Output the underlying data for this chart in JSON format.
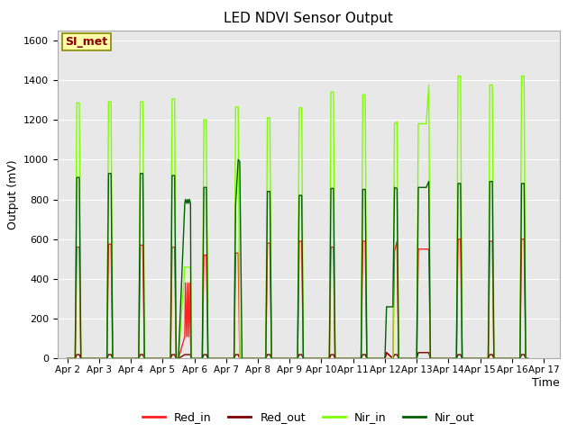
{
  "title": "LED NDVI Sensor Output",
  "xlabel": "Time",
  "ylabel": "Output (mV)",
  "ylim": [
    0,
    1650
  ],
  "yticks": [
    0,
    200,
    400,
    600,
    800,
    1000,
    1200,
    1400,
    1600
  ],
  "annotation_text": "SI_met",
  "bg_color": "#e8e8e8",
  "colors": {
    "Red_in": "#ff2020",
    "Red_out": "#800000",
    "Nir_in": "#80ff00",
    "Nir_out": "#006000"
  },
  "days": [
    "Apr 2",
    "Apr 3",
    "Apr 4",
    "Apr 5",
    "Apr 6",
    "Apr 7",
    "Apr 8",
    "Apr 9",
    "Apr 10",
    "Apr 11",
    "Apr 12",
    "Apr 13",
    "Apr 14",
    "Apr 15",
    "Apr 16",
    "Apr 17"
  ],
  "day_positions": [
    0,
    1,
    2,
    3,
    4,
    5,
    6,
    7,
    8,
    9,
    10,
    11,
    12,
    13,
    14,
    15
  ],
  "xlim": [
    -0.3,
    15.5
  ],
  "series": {
    "Red_in": {
      "x": [
        0,
        0.25,
        0.3,
        0.38,
        0.43,
        0.5,
        1,
        1.25,
        1.3,
        1.38,
        1.43,
        1.5,
        2,
        2.25,
        2.3,
        2.38,
        2.43,
        2.5,
        3,
        3.25,
        3.3,
        3.38,
        3.43,
        3.5,
        3.7,
        3.72,
        3.76,
        3.79,
        3.82,
        3.85,
        3.88,
        3.9,
        4,
        4.25,
        4.3,
        4.38,
        4.43,
        4.5,
        5,
        5.25,
        5.3,
        5.38,
        5.43,
        5.5,
        6,
        6.25,
        6.3,
        6.38,
        6.43,
        6.5,
        7,
        7.25,
        7.3,
        7.38,
        7.43,
        7.5,
        8,
        8.25,
        8.3,
        8.38,
        8.43,
        8.5,
        9,
        9.25,
        9.3,
        9.38,
        9.43,
        9.5,
        10,
        10.05,
        10.25,
        10.3,
        10.38,
        10.43,
        10.5,
        11,
        11.05,
        11.3,
        11.38,
        11.43,
        11.5,
        12,
        12.25,
        12.3,
        12.38,
        12.43,
        12.5,
        13,
        13.25,
        13.3,
        13.38,
        13.43,
        13.5,
        14,
        14.25,
        14.3,
        14.38,
        14.43,
        14.5
      ],
      "y": [
        0,
        0,
        560,
        560,
        0,
        0,
        0,
        0,
        575,
        575,
        0,
        0,
        0,
        0,
        570,
        570,
        0,
        0,
        0,
        0,
        560,
        560,
        0,
        0,
        110,
        380,
        110,
        380,
        110,
        380,
        110,
        0,
        0,
        0,
        520,
        520,
        0,
        0,
        0,
        0,
        530,
        530,
        0,
        0,
        0,
        0,
        580,
        580,
        0,
        0,
        0,
        0,
        590,
        590,
        0,
        0,
        0,
        0,
        560,
        560,
        0,
        0,
        0,
        0,
        590,
        590,
        0,
        0,
        0,
        30,
        0,
        540,
        590,
        0,
        0,
        0,
        550,
        550,
        550,
        0,
        0,
        0,
        0,
        600,
        600,
        0,
        0,
        0,
        0,
        590,
        590,
        0,
        0,
        0,
        0,
        600,
        600,
        0,
        0
      ]
    },
    "Red_out": {
      "x": [
        0,
        0.25,
        0.3,
        0.38,
        0.43,
        0.5,
        1,
        1.25,
        1.3,
        1.38,
        1.43,
        1.5,
        2,
        2.25,
        2.3,
        2.38,
        2.43,
        2.5,
        3,
        3.25,
        3.3,
        3.38,
        3.43,
        3.5,
        3.7,
        3.72,
        3.76,
        3.79,
        3.82,
        3.85,
        3.88,
        3.9,
        4,
        4.25,
        4.3,
        4.38,
        4.43,
        4.5,
        5,
        5.25,
        5.3,
        5.38,
        5.43,
        5.5,
        6,
        6.25,
        6.3,
        6.38,
        6.43,
        6.5,
        7,
        7.25,
        7.3,
        7.38,
        7.43,
        7.5,
        8,
        8.25,
        8.3,
        8.38,
        8.43,
        8.5,
        9,
        9.25,
        9.3,
        9.38,
        9.43,
        9.5,
        10,
        10.05,
        10.25,
        10.3,
        10.38,
        10.43,
        10.5,
        11,
        11.05,
        11.3,
        11.38,
        11.43,
        11.5,
        12,
        12.25,
        12.3,
        12.38,
        12.43,
        12.5,
        13,
        13.25,
        13.3,
        13.38,
        13.43,
        13.5,
        14,
        14.25,
        14.3,
        14.38,
        14.43,
        14.5
      ],
      "y": [
        0,
        0,
        20,
        20,
        0,
        0,
        0,
        0,
        20,
        20,
        0,
        0,
        0,
        0,
        20,
        20,
        0,
        0,
        0,
        0,
        20,
        20,
        0,
        0,
        20,
        20,
        20,
        20,
        20,
        20,
        20,
        0,
        0,
        0,
        20,
        20,
        0,
        0,
        0,
        0,
        20,
        20,
        0,
        0,
        0,
        0,
        20,
        20,
        0,
        0,
        0,
        0,
        20,
        20,
        0,
        0,
        0,
        0,
        20,
        20,
        0,
        0,
        0,
        0,
        20,
        20,
        0,
        0,
        0,
        30,
        0,
        20,
        20,
        0,
        0,
        0,
        30,
        30,
        30,
        0,
        0,
        0,
        0,
        20,
        20,
        0,
        0,
        0,
        0,
        20,
        20,
        0,
        0,
        0,
        0,
        20,
        20,
        0,
        0
      ]
    },
    "Nir_in": {
      "x": [
        0,
        0.25,
        0.3,
        0.38,
        0.43,
        0.5,
        1,
        1.25,
        1.3,
        1.38,
        1.43,
        1.5,
        2,
        2.25,
        2.3,
        2.38,
        2.43,
        2.5,
        3,
        3.25,
        3.3,
        3.38,
        3.43,
        3.5,
        3.7,
        3.72,
        3.76,
        3.79,
        3.82,
        3.85,
        3.88,
        3.9,
        4,
        4.25,
        4.3,
        4.38,
        4.43,
        4.5,
        5,
        5.25,
        5.3,
        5.38,
        5.43,
        5.5,
        6,
        6.25,
        6.3,
        6.38,
        6.43,
        6.5,
        7,
        7.25,
        7.3,
        7.38,
        7.43,
        7.5,
        8,
        8.25,
        8.3,
        8.38,
        8.43,
        8.5,
        9,
        9.25,
        9.3,
        9.38,
        9.43,
        9.5,
        10,
        10.05,
        10.25,
        10.3,
        10.38,
        10.43,
        10.5,
        11,
        11.05,
        11.3,
        11.38,
        11.43,
        11.5,
        12,
        12.25,
        12.3,
        12.38,
        12.43,
        12.5,
        13,
        13.25,
        13.3,
        13.38,
        13.43,
        13.5,
        14,
        14.25,
        14.3,
        14.38,
        14.43,
        14.5
      ],
      "y": [
        0,
        0,
        1285,
        1285,
        0,
        0,
        0,
        0,
        1290,
        1290,
        0,
        0,
        0,
        0,
        1290,
        1290,
        0,
        0,
        0,
        0,
        1305,
        1305,
        0,
        0,
        460,
        460,
        460,
        460,
        460,
        460,
        460,
        0,
        0,
        0,
        1200,
        1200,
        0,
        0,
        0,
        0,
        1265,
        1265,
        0,
        0,
        0,
        0,
        1210,
        1210,
        0,
        0,
        0,
        0,
        1260,
        1260,
        0,
        0,
        0,
        0,
        1340,
        1340,
        0,
        0,
        0,
        0,
        1325,
        1325,
        0,
        0,
        0,
        0,
        0,
        1180,
        1190,
        0,
        0,
        0,
        1180,
        1180,
        1375,
        0,
        0,
        0,
        0,
        1420,
        1420,
        0,
        0,
        0,
        0,
        1375,
        1375,
        0,
        0,
        0,
        0,
        1420,
        1420,
        0,
        0
      ]
    },
    "Nir_out": {
      "x": [
        0,
        0.25,
        0.3,
        0.38,
        0.43,
        0.5,
        1,
        1.25,
        1.3,
        1.38,
        1.43,
        1.5,
        2,
        2.25,
        2.3,
        2.38,
        2.43,
        2.5,
        3,
        3.25,
        3.3,
        3.38,
        3.43,
        3.5,
        3.7,
        3.72,
        3.76,
        3.79,
        3.82,
        3.85,
        3.88,
        3.9,
        4,
        4.25,
        4.3,
        4.38,
        4.43,
        4.5,
        5,
        5.25,
        5.3,
        5.38,
        5.43,
        5.5,
        6,
        6.25,
        6.3,
        6.38,
        6.43,
        6.5,
        7,
        7.25,
        7.3,
        7.38,
        7.43,
        7.5,
        8,
        8.25,
        8.3,
        8.38,
        8.43,
        8.5,
        9,
        9.25,
        9.3,
        9.38,
        9.43,
        9.5,
        10,
        10.05,
        10.25,
        10.3,
        10.38,
        10.43,
        10.5,
        11,
        11.05,
        11.3,
        11.38,
        11.43,
        11.5,
        12,
        12.25,
        12.3,
        12.38,
        12.43,
        12.5,
        13,
        13.25,
        13.3,
        13.38,
        13.43,
        13.5,
        14,
        14.25,
        14.3,
        14.38,
        14.43,
        14.5
      ],
      "y": [
        0,
        0,
        910,
        910,
        0,
        0,
        0,
        0,
        930,
        930,
        0,
        0,
        0,
        0,
        930,
        930,
        0,
        0,
        0,
        0,
        920,
        920,
        0,
        0,
        780,
        800,
        780,
        800,
        780,
        800,
        780,
        0,
        0,
        0,
        860,
        860,
        0,
        0,
        0,
        0,
        770,
        1000,
        990,
        0,
        0,
        0,
        840,
        840,
        0,
        0,
        0,
        0,
        820,
        820,
        0,
        0,
        0,
        0,
        855,
        855,
        0,
        0,
        0,
        0,
        850,
        850,
        0,
        0,
        0,
        260,
        260,
        860,
        855,
        0,
        0,
        0,
        860,
        860,
        890,
        0,
        0,
        0,
        0,
        880,
        880,
        0,
        0,
        0,
        0,
        890,
        890,
        0,
        0,
        0,
        0,
        880,
        880,
        0,
        0
      ]
    }
  }
}
